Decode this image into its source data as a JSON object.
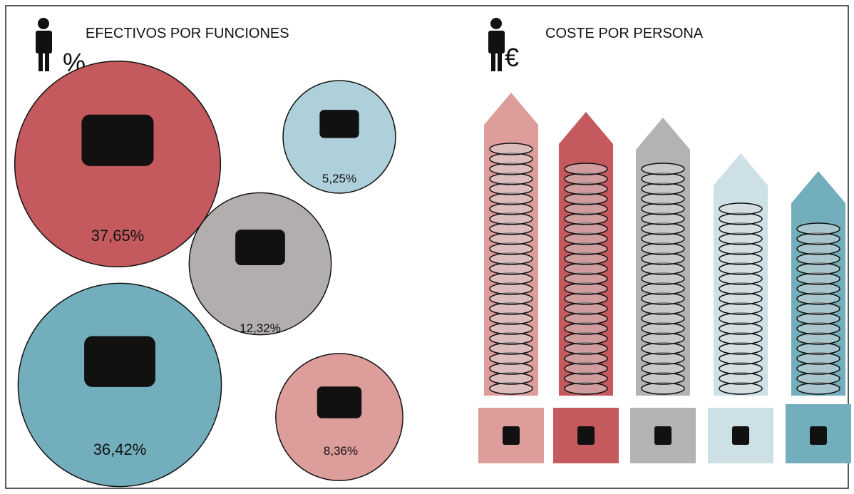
{
  "chart_data": [
    {
      "type": "bubble",
      "title": "EFECTIVOS POR FUNCIONES",
      "values": [
        37.65,
        5.25,
        12.32,
        36.42,
        8.36
      ],
      "value_labels": [
        "37,65%",
        "5,25%",
        "12,32%",
        "36,42%",
        "8,36%"
      ],
      "colors": [
        "#c45a5e",
        "#aed0da",
        "#b3aeae",
        "#72aebb",
        "#dd9d9b"
      ]
    },
    {
      "type": "arrow-bar",
      "title": "COSTE POR PERSONA",
      "categories": [
        null,
        null,
        null,
        null,
        null
      ],
      "values": [
        425,
        398,
        390,
        340,
        315
      ],
      "colors": [
        "#dd9d9b",
        "#c45a5e",
        "#b3b3b3",
        "#cce0e6",
        "#72aebb"
      ],
      "ylim": [
        0,
        450
      ]
    }
  ]
}
